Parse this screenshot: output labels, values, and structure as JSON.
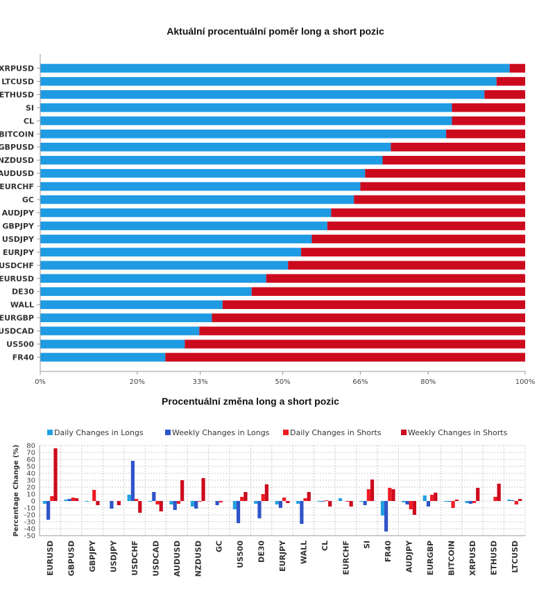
{
  "colors": {
    "long": "#1e9be3",
    "short": "#cc0a1e",
    "daily_long": "#21a0e0",
    "weekly_long": "#2f55c8",
    "daily_short": "#ef1c24",
    "weekly_short": "#cc0a1e"
  },
  "chart_data": [
    {
      "type": "bar",
      "orientation": "horizontal",
      "stacked": true,
      "title": "Aktuální procentuální poměr long a short pozic",
      "categories": [
        "XRPUSD",
        "LTCUSD",
        "ETHUSD",
        "SI",
        "CL",
        "BITCOIN",
        "GBPUSD",
        "NZDUSD",
        "AUDUSD",
        "EURCHF",
        "GC",
        "AUDJPY",
        "GBPJPY",
        "USDJPY",
        "EURJPY",
        "USDCHF",
        "EURUSD",
        "DE30",
        "WALL",
        "EURGBP",
        "USDCAD",
        "US500",
        "FR40"
      ],
      "series": [
        {
          "values": [
            96.8,
            94.1,
            91.6,
            84.9,
            84.9,
            83.7,
            72.3,
            70.6,
            67.0,
            66.0,
            64.7,
            60.0,
            59.2,
            56.0,
            53.8,
            51.1,
            46.6,
            43.6,
            37.6,
            35.4,
            32.8,
            29.8,
            25.8
          ]
        },
        {
          "values": [
            3.2,
            5.9,
            8.4,
            15.1,
            15.1,
            16.3,
            27.7,
            29.4,
            33.0,
            34.0,
            35.3,
            40.0,
            40.8,
            44.0,
            46.2,
            48.9,
            53.4,
            56.4,
            62.4,
            64.6,
            67.2,
            70.2,
            74.2
          ]
        }
      ],
      "xticks": [
        "0%",
        "20%",
        "33%",
        "50%",
        "66%",
        "80%",
        "100%"
      ],
      "xtick_values": [
        0,
        20,
        33,
        50,
        66,
        80,
        100
      ],
      "xlim": [
        0,
        100
      ]
    },
    {
      "type": "bar",
      "title": "Procentuální změna long a short pozic",
      "ylabel": "Percentage Change (%)",
      "ylim": [
        -50,
        80
      ],
      "yticks": [
        80,
        70,
        60,
        50,
        40,
        30,
        20,
        10,
        0,
        -10,
        -20,
        -30,
        -40,
        -50
      ],
      "legend_position": "top",
      "categories": [
        "EURUSD",
        "GBPUSD",
        "GBPJPY",
        "USDJPY",
        "USDCHF",
        "USDCAD",
        "AUDUSD",
        "NZDUSD",
        "GC",
        "US500",
        "DE30",
        "EURJPY",
        "WALL",
        "CL",
        "EURCHF",
        "SI",
        "FR40",
        "AUDJPY",
        "EURGBP",
        "BITCOIN",
        "XRPUSD",
        "ETHUSD",
        "LTCUSD"
      ],
      "series": [
        {
          "name": "Daily Changes in Longs",
          "values": [
            -4,
            2,
            -1,
            0,
            9,
            -1,
            -5,
            -8,
            0,
            -12,
            -4,
            -5,
            -4,
            -1,
            4,
            -1,
            -21,
            -2,
            8,
            -1,
            -3,
            0,
            2
          ]
        },
        {
          "name": "Weekly Changes in Longs",
          "values": [
            -27,
            3,
            0,
            -11,
            58,
            13,
            -13,
            -11,
            -6,
            -32,
            -25,
            -10,
            -33,
            -1,
            0,
            -6,
            -44,
            -5,
            -8,
            -1,
            -4,
            0,
            1
          ]
        },
        {
          "name": "Daily Changes in Shorts",
          "values": [
            7,
            5,
            16,
            0,
            3,
            -5,
            -4,
            -1,
            -2,
            6,
            10,
            5,
            4,
            1,
            -1,
            17,
            19,
            -12,
            9,
            -10,
            -3,
            6,
            -5
          ]
        },
        {
          "name": "Weekly Changes in Shorts",
          "values": [
            76,
            4,
            -6,
            -6,
            -17,
            -15,
            30,
            33,
            0,
            13,
            24,
            -3,
            13,
            -8,
            -8,
            31,
            17,
            -20,
            12,
            2,
            19,
            25,
            3
          ]
        }
      ]
    }
  ]
}
